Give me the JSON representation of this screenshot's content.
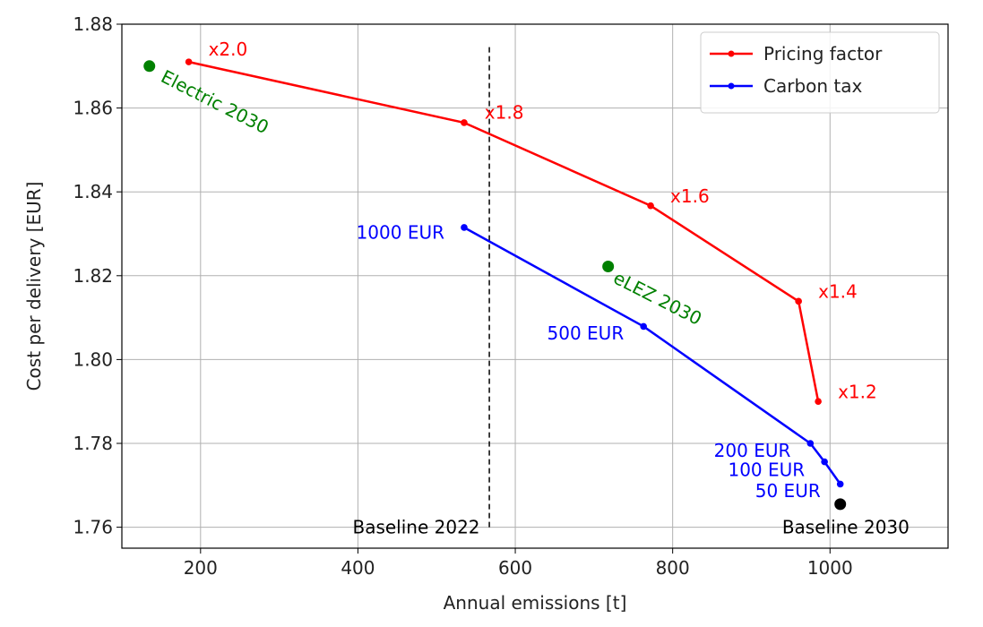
{
  "chart_data": {
    "type": "line",
    "xlabel": "Annual emissions [t]",
    "ylabel": "Cost per delivery [EUR]",
    "xlim": [
      100,
      1150
    ],
    "ylim": [
      1.755,
      1.88
    ],
    "x_ticks": [
      200,
      400,
      600,
      800,
      1000
    ],
    "y_ticks": [
      1.76,
      1.78,
      1.8,
      1.82,
      1.84,
      1.86,
      1.88
    ],
    "x_tick_labels": [
      "200",
      "400",
      "600",
      "800",
      "1000"
    ],
    "y_tick_labels": [
      "1.76",
      "1.78",
      "1.80",
      "1.82",
      "1.84",
      "1.86",
      "1.88"
    ],
    "grid": true,
    "legend_position": "top-right",
    "series": [
      {
        "name": "Pricing factor",
        "color": "#ff0000",
        "points": [
          {
            "x": 185,
            "y": 1.871
          },
          {
            "x": 535,
            "y": 1.8565
          },
          {
            "x": 772,
            "y": 1.8367
          },
          {
            "x": 960,
            "y": 1.8139
          },
          {
            "x": 985,
            "y": 1.79
          }
        ]
      },
      {
        "name": "Carbon tax",
        "color": "#0000ff",
        "points": [
          {
            "x": 535,
            "y": 1.8315
          },
          {
            "x": 763,
            "y": 1.8079
          },
          {
            "x": 975,
            "y": 1.78
          },
          {
            "x": 993,
            "y": 1.7756
          },
          {
            "x": 1013,
            "y": 1.7703
          }
        ]
      }
    ],
    "markers": [
      {
        "label": "Electric 2030",
        "x": 135,
        "y": 1.87,
        "color": "#008000"
      },
      {
        "label": "eLEZ 2030",
        "x": 718,
        "y": 1.8222,
        "color": "#008000"
      },
      {
        "label": "Baseline 2030",
        "x": 1013,
        "y": 1.7655,
        "color": "#000000"
      }
    ],
    "reference_line": {
      "label": "Baseline 2022",
      "x": 567,
      "y_from": 1.76,
      "y_to": 1.875,
      "style": "dashed"
    },
    "annotations": [
      {
        "text": "x2.0",
        "x": 210,
        "y": 1.8725,
        "color": "#ff0000",
        "anchor": "start",
        "rotate": 0
      },
      {
        "text": "x1.8",
        "x": 561,
        "y": 1.8575,
        "color": "#ff0000",
        "anchor": "start",
        "rotate": 0
      },
      {
        "text": "x1.6",
        "x": 797,
        "y": 1.8375,
        "color": "#ff0000",
        "anchor": "start",
        "rotate": 0
      },
      {
        "text": "x1.4",
        "x": 985,
        "y": 1.8147,
        "color": "#ff0000",
        "anchor": "start",
        "rotate": 0
      },
      {
        "text": "x1.2",
        "x": 1010,
        "y": 1.7908,
        "color": "#ff0000",
        "anchor": "start",
        "rotate": 0
      },
      {
        "text": "1000 EUR",
        "x": 510,
        "y": 1.8288,
        "color": "#0000ff",
        "anchor": "end",
        "rotate": 0
      },
      {
        "text": "500 EUR",
        "x": 738,
        "y": 1.8048,
        "color": "#0000ff",
        "anchor": "end",
        "rotate": 0
      },
      {
        "text": "200 EUR",
        "x": 950,
        "y": 1.7768,
        "color": "#0000ff",
        "anchor": "end",
        "rotate": 0
      },
      {
        "text": "100 EUR",
        "x": 968,
        "y": 1.7722,
        "color": "#0000ff",
        "anchor": "end",
        "rotate": 0
      },
      {
        "text": "50 EUR",
        "x": 988,
        "y": 1.7672,
        "color": "#0000ff",
        "anchor": "end",
        "rotate": 0
      },
      {
        "text": "Baseline 2022",
        "x": 555,
        "y": 1.7585,
        "color": "#000000",
        "anchor": "end",
        "rotate": 0
      },
      {
        "text": "Baseline 2030",
        "x": 1020,
        "y": 1.7585,
        "color": "#000000",
        "anchor": "middle",
        "rotate": 0
      },
      {
        "text": "Electric 2030",
        "x": 148,
        "y": 1.8665,
        "color": "#008000",
        "anchor": "start",
        "rotate": 27
      },
      {
        "text": "eLEZ 2030",
        "x": 723,
        "y": 1.8185,
        "color": "#008000",
        "anchor": "start",
        "rotate": 27
      }
    ]
  }
}
